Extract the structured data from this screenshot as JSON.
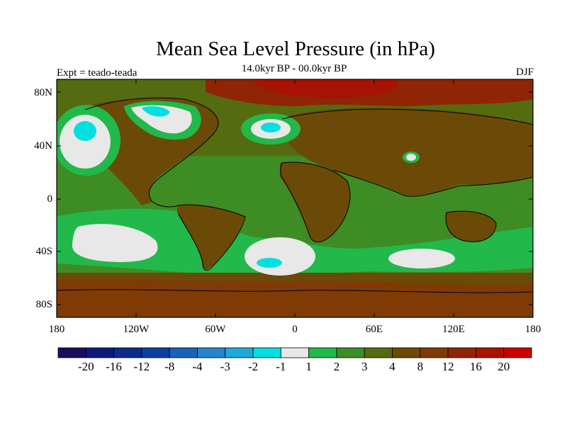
{
  "title": "Mean Sea Level Pressure (in hPa)",
  "subtitle": "14.0kyr BP - 00.0kyr BP",
  "experiment": "Expt = teado-teada",
  "season": "DJF",
  "lat_labels": [
    "80N",
    "40N",
    "0",
    "40S",
    "80S"
  ],
  "lon_labels": [
    "180",
    "120W",
    "60W",
    "0",
    "60E",
    "120E",
    "180"
  ],
  "colorbar": {
    "labels": [
      "-20",
      "-16",
      "-12",
      "-8",
      "-4",
      "-3",
      "-2",
      "-1",
      "1",
      "2",
      "3",
      "4",
      "8",
      "12",
      "16",
      "20"
    ],
    "colors": [
      "#1b0d5c",
      "#0f1a7a",
      "#0d2a8c",
      "#0a3fa0",
      "#1a62b8",
      "#2684c8",
      "#1fa8d8",
      "#00e0e0",
      "#e8e8e8",
      "#22b84a",
      "#3e8c24",
      "#556b0f",
      "#6b4a08",
      "#7f3a06",
      "#8f2504",
      "#a81202",
      "#cc0000"
    ]
  },
  "map_colors": {
    "ocean_base": "#3e8c24",
    "land_base": "#6b4a08",
    "coast": "#000000"
  }
}
